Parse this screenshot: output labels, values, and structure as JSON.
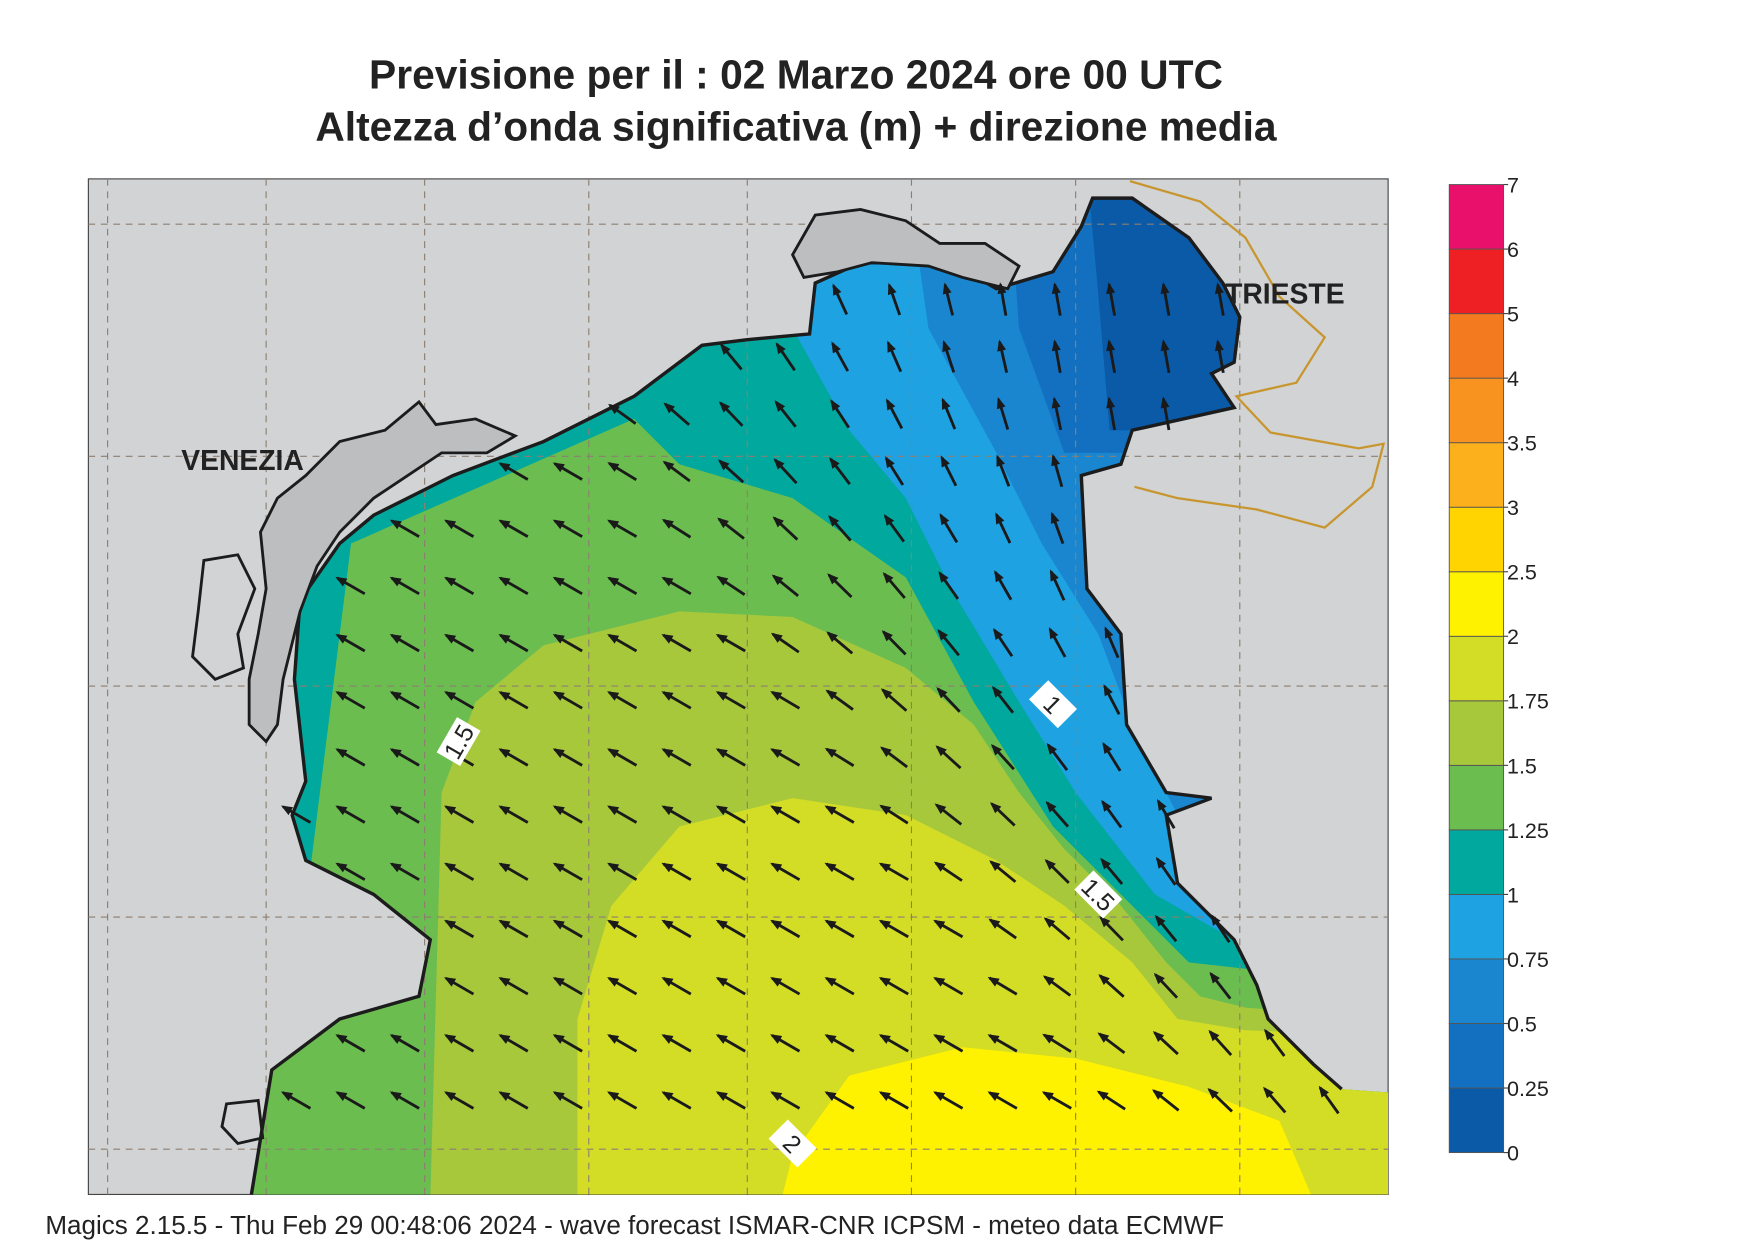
{
  "header": {
    "title_lines": [
      "Previsione per il  :  02   Marzo   2024   ore 00 UTC",
      "Altezza d’onda significativa (m) + direzione media"
    ]
  },
  "map": {
    "place_labels": [
      "VENEZIA",
      "TRIESTE"
    ],
    "contour_labels": [
      "1.5",
      "1",
      "1.5",
      "2"
    ]
  },
  "colorbar": {
    "ticks": [
      0,
      0.25,
      0.5,
      0.75,
      1,
      1.25,
      1.5,
      1.75,
      2,
      2.5,
      3,
      3.5,
      4,
      5,
      6,
      7
    ],
    "colors": [
      "#0a5aa8",
      "#1370c0",
      "#1a86d0",
      "#1ea2e2",
      "#00a89d",
      "#6cbd50",
      "#a8c83c",
      "#d4dd26",
      "#fff200",
      "#ffd400",
      "#fcb01c",
      "#f7931e",
      "#f47a20",
      "#ee2024",
      "#e8106a"
    ]
  },
  "footer": "Magics 2.15.5 - Thu Feb 29 00:48:06 2024 - wave forecast  ISMAR-CNR  ICPSM - meteo data    ECMWF"
}
